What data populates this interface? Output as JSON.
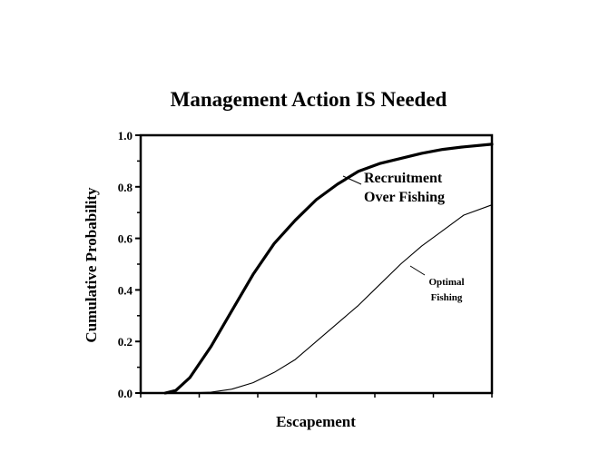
{
  "chart_data": {
    "type": "line",
    "title": "Management Action IS Needed",
    "xlabel": "Escapement",
    "ylabel": "Cumulative Probability",
    "xlim": [
      0,
      100
    ],
    "ylim": [
      0,
      1
    ],
    "yticks": [
      "0.0",
      "0.2",
      "0.4",
      "0.6",
      "0.8",
      "1.0"
    ],
    "ytick_values": [
      0,
      0.2,
      0.4,
      0.6,
      0.8,
      1.0
    ],
    "xticks_count": 7,
    "grid": false,
    "series": [
      {
        "name": "Recruitment Over Fishing",
        "label_lines": [
          "Recruitment",
          "Over Fishing"
        ],
        "stroke": "#000000",
        "weight": "heavy",
        "points": [
          [
            7,
            0
          ],
          [
            10,
            0.01
          ],
          [
            14,
            0.06
          ],
          [
            20,
            0.18
          ],
          [
            26,
            0.32
          ],
          [
            32,
            0.46
          ],
          [
            38,
            0.58
          ],
          [
            44,
            0.67
          ],
          [
            50,
            0.75
          ],
          [
            56,
            0.81
          ],
          [
            62,
            0.86
          ],
          [
            68,
            0.89
          ],
          [
            74,
            0.91
          ],
          [
            80,
            0.93
          ],
          [
            86,
            0.945
          ],
          [
            92,
            0.955
          ],
          [
            100,
            0.965
          ]
        ]
      },
      {
        "name": "Optimal Fishing",
        "label_lines": [
          "Optimal",
          "Fishing"
        ],
        "stroke": "#000000",
        "weight": "light",
        "points": [
          [
            7,
            0
          ],
          [
            14,
            0
          ],
          [
            20,
            0.003
          ],
          [
            26,
            0.015
          ],
          [
            32,
            0.04
          ],
          [
            38,
            0.08
          ],
          [
            44,
            0.13
          ],
          [
            50,
            0.2
          ],
          [
            56,
            0.27
          ],
          [
            62,
            0.34
          ],
          [
            68,
            0.42
          ],
          [
            74,
            0.5
          ],
          [
            80,
            0.57
          ],
          [
            86,
            0.63
          ],
          [
            92,
            0.69
          ],
          [
            100,
            0.73
          ]
        ]
      }
    ]
  }
}
